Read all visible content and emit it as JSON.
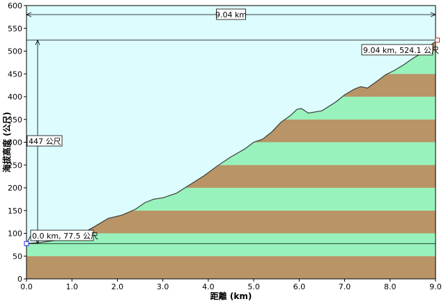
{
  "chart_data": {
    "type": "area",
    "xlabel": "距離 (km)",
    "ylabel": "海拔高度 (公尺)",
    "xlim": [
      0,
      9
    ],
    "ylim": [
      0,
      600
    ],
    "x_ticks": [
      "0.0",
      "1.0",
      "2.0",
      "3.0",
      "4.0",
      "5.0",
      "6.0",
      "7.0",
      "8.0",
      "9.0"
    ],
    "y_ticks": [
      "0",
      "50",
      "100",
      "150",
      "200",
      "250",
      "300",
      "350",
      "400",
      "450",
      "500",
      "550",
      "600"
    ],
    "band_height": 50,
    "colors": {
      "sky": "#dcfcfd",
      "band_green": "#98f2bb",
      "band_brown": "#b89466",
      "profile_line": "#3c3c3c",
      "annotation_line": "#000000"
    },
    "series": [
      {
        "x": [
          0.0,
          0.3,
          0.6,
          0.9,
          1.2,
          1.5,
          1.8,
          2.1,
          2.4,
          2.6,
          2.8,
          3.0,
          3.3,
          3.6,
          3.9,
          4.2,
          4.5,
          4.8,
          5.0,
          5.2,
          5.4,
          5.6,
          5.8,
          5.95,
          6.05,
          6.2,
          6.5,
          6.8,
          7.0,
          7.2,
          7.35,
          7.5,
          7.7,
          7.9,
          8.1,
          8.3,
          8.5,
          8.7,
          8.85,
          9.04
        ],
        "y": [
          77.5,
          80,
          84,
          90,
          98,
          115,
          133,
          140,
          153,
          167,
          175,
          178,
          188,
          207,
          226,
          248,
          268,
          285,
          300,
          307,
          323,
          344,
          358,
          372,
          374,
          364,
          369,
          388,
          404,
          416,
          422,
          419,
          433,
          448,
          458,
          470,
          484,
          496,
          510,
          524.1
        ]
      }
    ],
    "annotations": {
      "total_distance": "9.04 km",
      "elevation_gain": "447 公尺",
      "start_point": "0.0 km, 77.5 公尺",
      "end_point": "9.04 km, 524.1 公尺"
    },
    "start": {
      "x": 0.0,
      "y": 77.5
    },
    "end": {
      "x": 9.04,
      "y": 524.1
    },
    "grid": false
  }
}
